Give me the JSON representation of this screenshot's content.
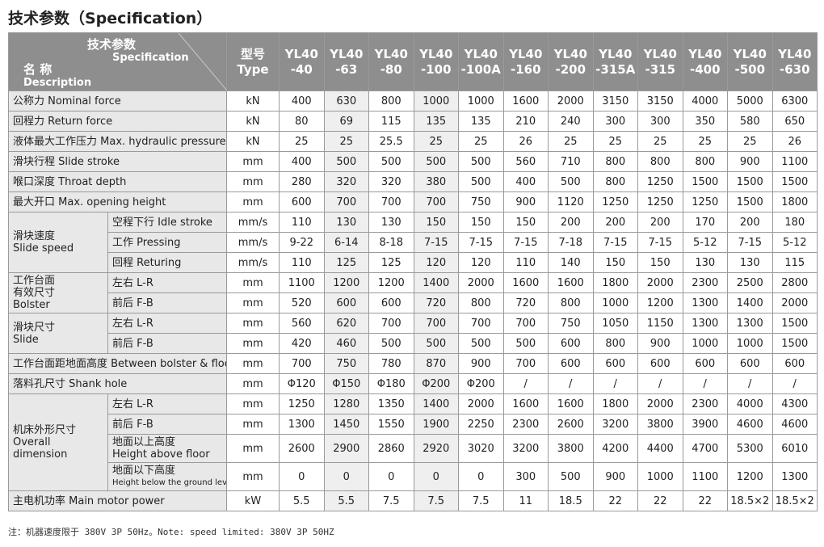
{
  "title": "技术参数（Specification）",
  "table": {
    "corner": {
      "cn": "技术参数",
      "en": "Specification",
      "name_cn": "名 称",
      "name_en": "Description"
    },
    "type_header": [
      "型号",
      "Type"
    ],
    "models": [
      [
        "YL40",
        "-40"
      ],
      [
        "YL40",
        "-63"
      ],
      [
        "YL40",
        "-80"
      ],
      [
        "YL40",
        "-100"
      ],
      [
        "YL40",
        "-100A"
      ],
      [
        "YL40",
        "-160"
      ],
      [
        "YL40",
        "-200"
      ],
      [
        "YL40",
        "-315A"
      ],
      [
        "YL40",
        "-315"
      ],
      [
        "YL40",
        "-400"
      ],
      [
        "YL40",
        "-500"
      ],
      [
        "YL40",
        "-630"
      ]
    ],
    "rows": [
      {
        "label": [
          "公称力 Nominal force"
        ],
        "unit": "kN",
        "values": [
          "400",
          "630",
          "800",
          "1000",
          "1000",
          "1600",
          "2000",
          "3150",
          "3150",
          "4000",
          "5000",
          "6300"
        ]
      },
      {
        "label": [
          "回程力 Return force"
        ],
        "unit": "kN",
        "values": [
          "80",
          "69",
          "115",
          "135",
          "135",
          "210",
          "240",
          "300",
          "300",
          "350",
          "580",
          "650"
        ]
      },
      {
        "label": [
          "液体最大工作压力 Max. hydraulic pressure"
        ],
        "unit": "kN",
        "values": [
          "25",
          "25",
          "25.5",
          "25",
          "25",
          "26",
          "25",
          "25",
          "25",
          "25",
          "25",
          "26"
        ]
      },
      {
        "label": [
          "滑块行程 Slide stroke"
        ],
        "unit": "mm",
        "values": [
          "400",
          "500",
          "500",
          "500",
          "500",
          "560",
          "710",
          "800",
          "800",
          "800",
          "900",
          "1100"
        ]
      },
      {
        "label": [
          "喉口深度 Throat depth"
        ],
        "unit": "mm",
        "values": [
          "280",
          "320",
          "320",
          "380",
          "500",
          "400",
          "500",
          "800",
          "1250",
          "1500",
          "1500",
          "1500"
        ]
      },
      {
        "label": [
          "最大开口 Max. opening height"
        ],
        "unit": "mm",
        "values": [
          "600",
          "700",
          "700",
          "700",
          "750",
          "900",
          "1120",
          "1250",
          "1250",
          "1250",
          "1500",
          "1800"
        ]
      },
      {
        "group": [
          "滑块速度",
          "Slide speed"
        ],
        "rows": [
          {
            "label": [
              "空程下行 Idle stroke"
            ],
            "unit": "mm/s",
            "values": [
              "110",
              "130",
              "130",
              "150",
              "150",
              "150",
              "200",
              "200",
              "200",
              "170",
              "200",
              "180"
            ]
          },
          {
            "label": [
              "工作 Pressing"
            ],
            "unit": "mm/s",
            "values": [
              "9-22",
              "6-14",
              "8-18",
              "7-15",
              "7-15",
              "7-15",
              "7-18",
              "7-15",
              "7-15",
              "5-12",
              "7-15",
              "5-12"
            ]
          },
          {
            "label": [
              "回程 Returing"
            ],
            "unit": "mm/s",
            "values": [
              "110",
              "125",
              "125",
              "120",
              "120",
              "110",
              "140",
              "150",
              "150",
              "130",
              "130",
              "115"
            ]
          }
        ]
      },
      {
        "group": [
          "工作台面",
          "有效尺寸",
          "Bolster"
        ],
        "rows": [
          {
            "label": [
              "左右 L-R"
            ],
            "unit": "mm",
            "values": [
              "1100",
              "1200",
              "1200",
              "1400",
              "2000",
              "1600",
              "1600",
              "1800",
              "2000",
              "2300",
              "2500",
              "2800"
            ]
          },
          {
            "label": [
              "前后 F-B"
            ],
            "unit": "mm",
            "values": [
              "520",
              "600",
              "600",
              "720",
              "800",
              "720",
              "800",
              "1000",
              "1200",
              "1300",
              "1400",
              "2000"
            ]
          }
        ]
      },
      {
        "group": [
          "滑块尺寸",
          "Slide"
        ],
        "rows": [
          {
            "label": [
              "左右 L-R"
            ],
            "unit": "mm",
            "values": [
              "560",
              "620",
              "700",
              "700",
              "700",
              "700",
              "750",
              "1050",
              "1150",
              "1300",
              "1300",
              "1500"
            ]
          },
          {
            "label": [
              "前后 F-B"
            ],
            "unit": "mm",
            "values": [
              "420",
              "460",
              "500",
              "500",
              "500",
              "500",
              "600",
              "800",
              "900",
              "1000",
              "1000",
              "1500"
            ]
          }
        ]
      },
      {
        "label": [
          "工作台面距地面高度 Between bolster & floor"
        ],
        "unit": "mm",
        "values": [
          "700",
          "750",
          "780",
          "870",
          "900",
          "700",
          "600",
          "600",
          "600",
          "600",
          "600",
          "600"
        ]
      },
      {
        "label": [
          "落料孔尺寸 Shank hole"
        ],
        "unit": "mm",
        "values": [
          "Φ120",
          "Φ150",
          "Φ180",
          "Φ200",
          "Φ200",
          "/",
          "/",
          "/",
          "/",
          "/",
          "/",
          "/"
        ]
      },
      {
        "group": [
          "机床外形尺寸",
          "Overall",
          "dimension"
        ],
        "rows": [
          {
            "label": [
              "左右 L-R"
            ],
            "unit": "mm",
            "values": [
              "1250",
              "1280",
              "1350",
              "1400",
              "2000",
              "1600",
              "1600",
              "1800",
              "2000",
              "2300",
              "4000",
              "4300"
            ]
          },
          {
            "label": [
              "前后 F-B"
            ],
            "unit": "mm",
            "values": [
              "1300",
              "1450",
              "1550",
              "1900",
              "2250",
              "2300",
              "2600",
              "3200",
              "3800",
              "3900",
              "4600",
              "4600"
            ]
          },
          {
            "label": [
              "地面以上高度",
              "Height above floor"
            ],
            "unit": "mm",
            "values": [
              "2600",
              "2900",
              "2860",
              "2920",
              "3020",
              "3200",
              "3800",
              "4200",
              "4400",
              "4700",
              "5300",
              "6010"
            ]
          },
          {
            "label": [
              "地面以下高度",
              "Height below the ground level"
            ],
            "unit": "mm",
            "values": [
              "0",
              "0",
              "0",
              "0",
              "0",
              "300",
              "500",
              "900",
              "1000",
              "1100",
              "1200",
              "1300"
            ]
          }
        ]
      },
      {
        "label": [
          "主电机功率 Main motor power"
        ],
        "unit": "kW",
        "values": [
          "5.5",
          "5.5",
          "7.5",
          "7.5",
          "7.5",
          "11",
          "18.5",
          "22",
          "22",
          "22",
          "18.5×2",
          "18.5×2"
        ]
      }
    ]
  },
  "note": "注：机器速度限于 380V 3P 50Hz。Note: speed limited: 380V 3P 50HZ"
}
